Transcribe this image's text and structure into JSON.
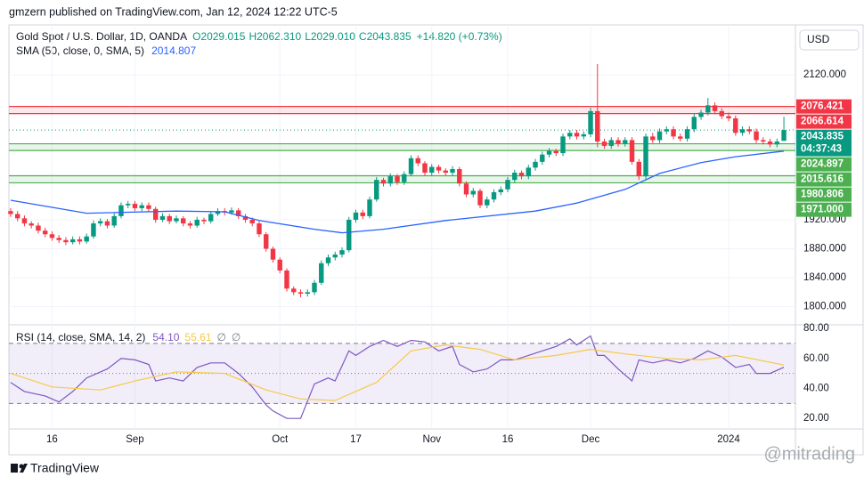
{
  "header": {
    "byline": "gmzern published on TradingView.com, Jan 12, 2024 12:22 UTC-5",
    "brand": "TradingView",
    "watermark": "@mitrading"
  },
  "chart_data": [
    {
      "type": "candlestick",
      "title": "Gold Spot / U.S. Dollar, 1D, OANDA",
      "ohlc_labels": [
        "O2029.015",
        "H2062.310",
        "L2029.010",
        "C2043.835"
      ],
      "change": "+14.820 (+0.73%)",
      "currency": "USD",
      "up_color": "#089981",
      "down_color": "#f23645",
      "xlim": [
        -0.25,
        112.25
      ],
      "xticks": [
        {
          "value": 6,
          "label": "16"
        },
        {
          "value": 18,
          "label": "Sep"
        },
        {
          "value": 39,
          "label": "Oct"
        },
        {
          "value": 50,
          "label": "17"
        },
        {
          "value": 61,
          "label": "Nov"
        },
        {
          "value": 72,
          "label": "16"
        },
        {
          "value": 84,
          "label": "Dec"
        },
        {
          "value": 104,
          "label": "2024"
        }
      ],
      "ylim": [
        1775,
        2189
      ],
      "yticks": [
        {
          "value": 1800,
          "label": "1800.000"
        },
        {
          "value": 1840,
          "label": "1840.000"
        },
        {
          "value": 1880,
          "label": "1880.000"
        },
        {
          "value": 1920,
          "label": "1920.000"
        },
        {
          "value": 2120,
          "label": "2120.000"
        }
      ],
      "candles": [
        [
          1932,
          1936,
          1924,
          1928
        ],
        [
          1928,
          1932,
          1918,
          1922
        ],
        [
          1922,
          1926,
          1911,
          1915
        ],
        [
          1915,
          1918,
          1908,
          1912
        ],
        [
          1912,
          1916,
          1901,
          1905
        ],
        [
          1905,
          1909,
          1896,
          1900
        ],
        [
          1900,
          1904,
          1891,
          1895
        ],
        [
          1895,
          1899,
          1888,
          1892
        ],
        [
          1892,
          1896,
          1885,
          1889
        ],
        [
          1889,
          1897,
          1886,
          1893
        ],
        [
          1893,
          1897,
          1886,
          1890
        ],
        [
          1890,
          1901,
          1887,
          1897
        ],
        [
          1897,
          1919,
          1894,
          1915
        ],
        [
          1915,
          1922,
          1911,
          1918
        ],
        [
          1918,
          1921,
          1908,
          1912
        ],
        [
          1912,
          1929,
          1909,
          1925
        ],
        [
          1925,
          1944,
          1922,
          1940
        ],
        [
          1940,
          1946,
          1936,
          1942
        ],
        [
          1942,
          1946,
          1932,
          1936
        ],
        [
          1936,
          1944,
          1932,
          1940
        ],
        [
          1940,
          1944,
          1931,
          1935
        ],
        [
          1935,
          1938,
          1916,
          1920
        ],
        [
          1920,
          1929,
          1917,
          1925
        ],
        [
          1925,
          1928,
          1914,
          1918
        ],
        [
          1918,
          1926,
          1915,
          1922
        ],
        [
          1922,
          1925,
          1911,
          1915
        ],
        [
          1915,
          1918,
          1908,
          1912
        ],
        [
          1912,
          1924,
          1909,
          1920
        ],
        [
          1920,
          1923,
          1914,
          1918
        ],
        [
          1918,
          1932,
          1915,
          1928
        ],
        [
          1928,
          1936,
          1925,
          1932
        ],
        [
          1932,
          1936,
          1926,
          1930
        ],
        [
          1930,
          1937,
          1927,
          1933
        ],
        [
          1933,
          1936,
          1921,
          1925
        ],
        [
          1925,
          1928,
          1916,
          1920
        ],
        [
          1920,
          1923,
          1911,
          1915
        ],
        [
          1915,
          1918,
          1896,
          1900
        ],
        [
          1900,
          1903,
          1876,
          1880
        ],
        [
          1880,
          1883,
          1861,
          1865
        ],
        [
          1865,
          1868,
          1846,
          1850
        ],
        [
          1850,
          1853,
          1821,
          1825
        ],
        [
          1825,
          1828,
          1816,
          1820
        ],
        [
          1820,
          1824,
          1813,
          1818
        ],
        [
          1818,
          1824,
          1814,
          1820
        ],
        [
          1820,
          1837,
          1816,
          1833
        ],
        [
          1833,
          1864,
          1830,
          1860
        ],
        [
          1860,
          1872,
          1856,
          1868
        ],
        [
          1868,
          1876,
          1864,
          1872
        ],
        [
          1872,
          1882,
          1868,
          1878
        ],
        [
          1878,
          1924,
          1875,
          1920
        ],
        [
          1920,
          1934,
          1916,
          1930
        ],
        [
          1930,
          1934,
          1921,
          1925
        ],
        [
          1925,
          1952,
          1922,
          1948
        ],
        [
          1948,
          1979,
          1945,
          1975
        ],
        [
          1975,
          1978,
          1966,
          1970
        ],
        [
          1970,
          1984,
          1966,
          1980
        ],
        [
          1980,
          1983,
          1968,
          1972
        ],
        [
          1972,
          1987,
          1968,
          1983
        ],
        [
          1983,
          2009,
          1980,
          2005
        ],
        [
          2005,
          2009,
          1994,
          1998
        ],
        [
          1998,
          2001,
          1981,
          1985
        ],
        [
          1985,
          1997,
          1981,
          1993
        ],
        [
          1993,
          1996,
          1984,
          1988
        ],
        [
          1988,
          1991,
          1981,
          1985
        ],
        [
          1985,
          1994,
          1981,
          1990
        ],
        [
          1990,
          1993,
          1966,
          1970
        ],
        [
          1970,
          1973,
          1951,
          1955
        ],
        [
          1955,
          1964,
          1951,
          1960
        ],
        [
          1960,
          1963,
          1936,
          1940
        ],
        [
          1940,
          1952,
          1936,
          1948
        ],
        [
          1948,
          1962,
          1944,
          1958
        ],
        [
          1958,
          1966,
          1954,
          1962
        ],
        [
          1962,
          1979,
          1958,
          1975
        ],
        [
          1975,
          1989,
          1971,
          1985
        ],
        [
          1985,
          1988,
          1976,
          1980
        ],
        [
          1980,
          1996,
          1976,
          1992
        ],
        [
          1992,
          2004,
          1988,
          2000
        ],
        [
          2000,
          2014,
          1996,
          2010
        ],
        [
          2010,
          2019,
          2006,
          2015
        ],
        [
          2015,
          2018,
          2008,
          2012
        ],
        [
          2012,
          2039,
          2008,
          2035
        ],
        [
          2035,
          2044,
          2031,
          2040
        ],
        [
          2040,
          2044,
          2031,
          2035
        ],
        [
          2035,
          2042,
          2031,
          2038
        ],
        [
          2038,
          2075,
          2034,
          2070
        ],
        [
          2070,
          2135,
          2020,
          2028
        ],
        [
          2028,
          2032,
          2018,
          2022
        ],
        [
          2022,
          2034,
          2018,
          2030
        ],
        [
          2030,
          2034,
          2021,
          2025
        ],
        [
          2025,
          2034,
          2021,
          2030
        ],
        [
          2030,
          2034,
          1996,
          2000
        ],
        [
          2000,
          2004,
          1975,
          1980
        ],
        [
          1980,
          2039,
          1976,
          2035
        ],
        [
          2035,
          2040,
          2026,
          2030
        ],
        [
          2030,
          2046,
          2026,
          2042
        ],
        [
          2042,
          2049,
          2038,
          2045
        ],
        [
          2045,
          2049,
          2031,
          2035
        ],
        [
          2035,
          2039,
          2028,
          2032
        ],
        [
          2032,
          2049,
          2028,
          2045
        ],
        [
          2045,
          2066,
          2041,
          2062
        ],
        [
          2062,
          2072,
          2058,
          2068
        ],
        [
          2068,
          2088,
          2064,
          2078
        ],
        [
          2078,
          2082,
          2066,
          2070
        ],
        [
          2070,
          2074,
          2059,
          2063
        ],
        [
          2063,
          2068,
          2056,
          2060
        ],
        [
          2060,
          2064,
          2036,
          2040
        ],
        [
          2040,
          2049,
          2036,
          2045
        ],
        [
          2045,
          2049,
          2038,
          2042
        ],
        [
          2042,
          2046,
          2026,
          2030
        ],
        [
          2030,
          2034,
          2024,
          2028
        ],
        [
          2028,
          2032,
          2020,
          2024
        ],
        [
          2024,
          2032,
          2020,
          2028
        ],
        [
          2029.015,
          2062.31,
          2029.01,
          2043.835
        ]
      ],
      "last_price": {
        "value": 2043.835,
        "label": "2043.835",
        "countdown": "04:37:43",
        "color": "#089981"
      },
      "sma": {
        "name": "SMA (50, close, 0, SMA, 5)",
        "color": "#2962ff",
        "value_label": "2014.807",
        "x": [
          0,
          11,
          24,
          31,
          36,
          44,
          48,
          54,
          63,
          76,
          82,
          89,
          94,
          100,
          105,
          112
        ],
        "values": [
          1947,
          1929,
          1932,
          1931,
          1919,
          1907,
          1902,
          1907,
          1919,
          1932,
          1943,
          1962,
          1984,
          1999,
          2007,
          2014.807
        ]
      },
      "zones": [
        {
          "values": [
            2066.614,
            2076.421
          ],
          "value_labels": [
            "2066.614",
            "2076.421"
          ],
          "color": "#f23645"
        },
        {
          "values": [
            2015.616,
            2024.897
          ],
          "value_labels": [
            "2015.616",
            "2024.897"
          ],
          "color": "#4caf50"
        },
        {
          "values": [
            1971.0,
            1980.806
          ],
          "value_labels": [
            "1971.000",
            "1980.806"
          ],
          "color": "#4caf50"
        }
      ]
    },
    {
      "type": "line",
      "title": "RSI (14, close, SMA, 14, 2)",
      "na_labels": [
        "∅",
        "∅"
      ],
      "ylim": [
        13,
        82.4
      ],
      "yticks": [
        {
          "value": 20,
          "label": "20.00"
        },
        {
          "value": 40,
          "label": "40.00"
        },
        {
          "value": 60,
          "label": "60.00"
        },
        {
          "value": 80,
          "label": "80.00"
        }
      ],
      "levels": [
        30,
        50,
        70
      ],
      "band_color": "#7e57c2",
      "series": [
        {
          "color": "#7e57c2",
          "value_label": "54.10",
          "x": [
            0,
            2,
            5,
            7,
            9,
            11,
            14,
            16,
            18,
            20,
            21,
            23,
            25,
            27,
            29,
            31,
            33,
            35,
            37,
            38,
            40,
            42,
            44,
            46,
            47,
            49,
            50,
            52,
            54,
            56,
            58,
            60,
            62,
            64,
            65,
            67,
            69,
            71,
            73,
            75,
            77,
            79,
            81,
            82,
            84,
            85,
            86,
            88,
            90,
            91,
            93,
            95,
            97,
            99,
            101,
            103,
            105,
            107,
            108,
            110,
            112
          ],
          "values": [
            44,
            38,
            35,
            31,
            38,
            47,
            53,
            60,
            59,
            56,
            45,
            47,
            45,
            54,
            57,
            57,
            50,
            41,
            29,
            25,
            20,
            20,
            43,
            47,
            45,
            65,
            62,
            68,
            72,
            68,
            72,
            71,
            65,
            68,
            56,
            51,
            53,
            59,
            59,
            62,
            65,
            68,
            73,
            69,
            75,
            62,
            62,
            53,
            45,
            59,
            57,
            59,
            57,
            60,
            65,
            61,
            54,
            56,
            50,
            50,
            54.1
          ]
        },
        {
          "color": "#f7c948",
          "value_label": "55.61",
          "x": [
            0,
            6,
            13,
            18,
            24,
            31,
            37,
            42,
            47,
            53,
            58,
            63,
            68,
            73,
            79,
            84,
            89,
            95,
            100,
            105,
            112
          ],
          "values": [
            50,
            41,
            39,
            45,
            51,
            50,
            39,
            33,
            32,
            44,
            65,
            69,
            66,
            59,
            62,
            66,
            63,
            60,
            59,
            62,
            55.61
          ]
        }
      ]
    }
  ]
}
